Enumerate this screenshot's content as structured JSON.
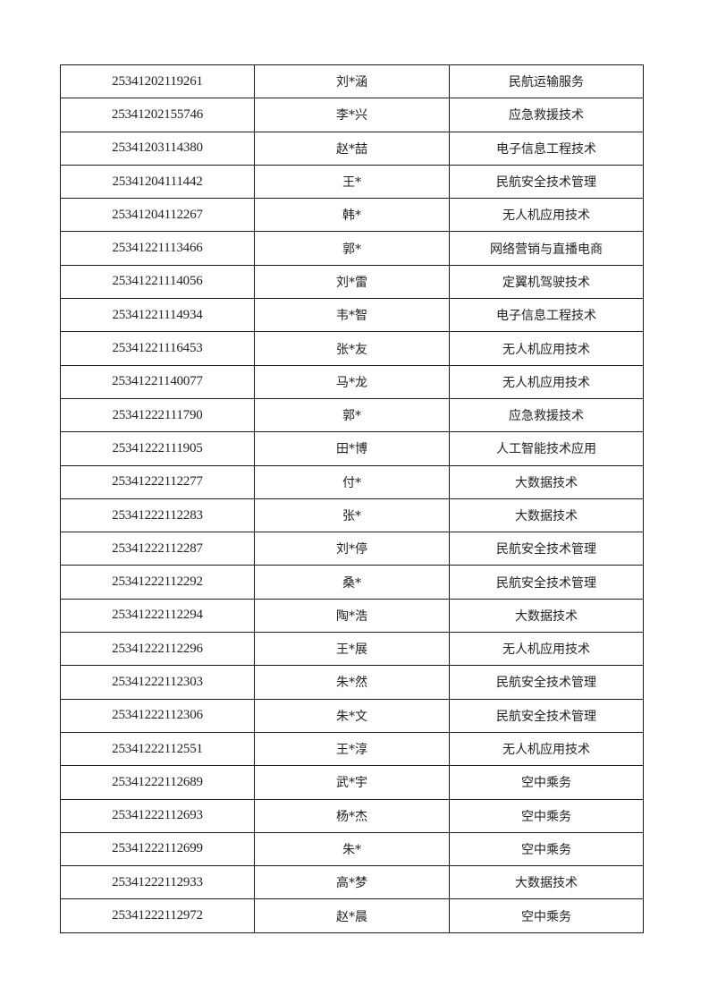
{
  "table": {
    "rows": [
      [
        "25341202119261",
        "刘*涵",
        "民航运输服务"
      ],
      [
        "25341202155746",
        "李*兴",
        "应急救援技术"
      ],
      [
        "25341203114380",
        "赵*喆",
        "电子信息工程技术"
      ],
      [
        "25341204111442",
        "王*",
        "民航安全技术管理"
      ],
      [
        "25341204112267",
        "韩*",
        "无人机应用技术"
      ],
      [
        "25341221113466",
        "郭*",
        "网络营销与直播电商"
      ],
      [
        "25341221114056",
        "刘*雷",
        "定翼机驾驶技术"
      ],
      [
        "25341221114934",
        "韦*智",
        "电子信息工程技术"
      ],
      [
        "25341221116453",
        "张*友",
        "无人机应用技术"
      ],
      [
        "25341221140077",
        "马*龙",
        "无人机应用技术"
      ],
      [
        "25341222111790",
        "郭*",
        "应急救援技术"
      ],
      [
        "25341222111905",
        "田*博",
        "人工智能技术应用"
      ],
      [
        "25341222112277",
        "付*",
        "大数据技术"
      ],
      [
        "25341222112283",
        "张*",
        "大数据技术"
      ],
      [
        "25341222112287",
        "刘*停",
        "民航安全技术管理"
      ],
      [
        "25341222112292",
        "桑*",
        "民航安全技术管理"
      ],
      [
        "25341222112294",
        "陶*浩",
        "大数据技术"
      ],
      [
        "25341222112296",
        "王*展",
        "无人机应用技术"
      ],
      [
        "25341222112303",
        "朱*然",
        "民航安全技术管理"
      ],
      [
        "25341222112306",
        "朱*文",
        "民航安全技术管理"
      ],
      [
        "25341222112551",
        "王*淳",
        "无人机应用技术"
      ],
      [
        "25341222112689",
        "武*宇",
        "空中乘务"
      ],
      [
        "25341222112693",
        "杨*杰",
        "空中乘务"
      ],
      [
        "25341222112699",
        "朱*",
        "空中乘务"
      ],
      [
        "25341222112933",
        "高*梦",
        "大数据技术"
      ],
      [
        "25341222112972",
        "赵*晨",
        "空中乘务"
      ]
    ]
  }
}
